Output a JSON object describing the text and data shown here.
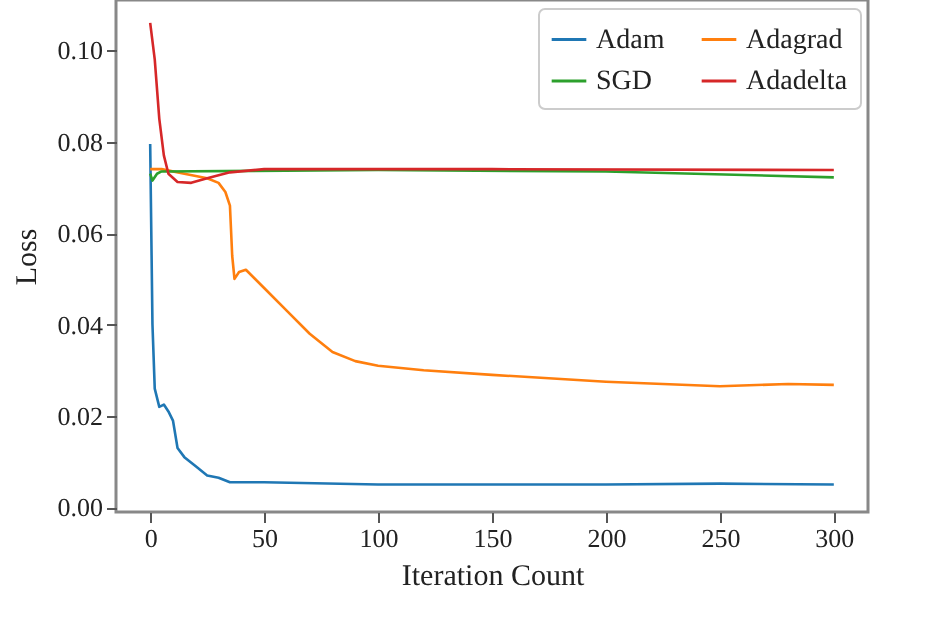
{
  "chart_data": {
    "type": "line",
    "xlabel": "Iteration Count",
    "ylabel": "Loss",
    "xlim": [
      -15,
      315
    ],
    "ylim": [
      -0.001,
      0.111
    ],
    "xticks": [
      0,
      50,
      100,
      150,
      200,
      250,
      300
    ],
    "yticks": [
      {
        "value": 0,
        "label": "0.00"
      },
      {
        "value": 0.02,
        "label": "0.02"
      },
      {
        "value": 0.04,
        "label": "0.04"
      },
      {
        "value": 0.06,
        "label": "0.06"
      },
      {
        "value": 0.08,
        "label": "0.08"
      },
      {
        "value": 0.1,
        "label": "0.10"
      }
    ],
    "grid": false,
    "legend": "top right",
    "series": [
      {
        "name": "Adam",
        "color": "#1f77b4",
        "x": [
          0,
          1,
          2,
          4,
          6,
          8,
          10,
          12,
          15,
          20,
          25,
          30,
          35,
          50,
          100,
          150,
          200,
          250,
          300
        ],
        "values": [
          0.0795,
          0.04,
          0.026,
          0.022,
          0.0225,
          0.021,
          0.019,
          0.013,
          0.011,
          0.009,
          0.007,
          0.0065,
          0.0055,
          0.0055,
          0.005,
          0.005,
          0.005,
          0.0052,
          0.005
        ]
      },
      {
        "name": "Adagrad",
        "color": "#ff7f0e",
        "x": [
          0,
          5,
          15,
          25,
          30,
          33,
          35,
          36,
          37,
          39,
          42,
          50,
          60,
          70,
          80,
          90,
          100,
          120,
          150,
          200,
          250,
          280,
          300
        ],
        "values": [
          0.074,
          0.074,
          0.073,
          0.072,
          0.071,
          0.069,
          0.066,
          0.055,
          0.05,
          0.0515,
          0.052,
          0.048,
          0.043,
          0.038,
          0.034,
          0.032,
          0.031,
          0.03,
          0.029,
          0.0275,
          0.0265,
          0.027,
          0.0268
        ]
      },
      {
        "name": "SGD",
        "color": "#2ca02c",
        "x": [
          0,
          1,
          3,
          5,
          100,
          200,
          300
        ],
        "values": [
          0.073,
          0.0715,
          0.073,
          0.0735,
          0.0738,
          0.0735,
          0.0722
        ]
      },
      {
        "name": "Adadelta",
        "color": "#d62728",
        "x": [
          0,
          2,
          4,
          6,
          8,
          12,
          18,
          25,
          35,
          50,
          150,
          300
        ],
        "values": [
          0.106,
          0.098,
          0.085,
          0.077,
          0.073,
          0.0712,
          0.071,
          0.072,
          0.0733,
          0.074,
          0.074,
          0.0738
        ]
      }
    ]
  }
}
